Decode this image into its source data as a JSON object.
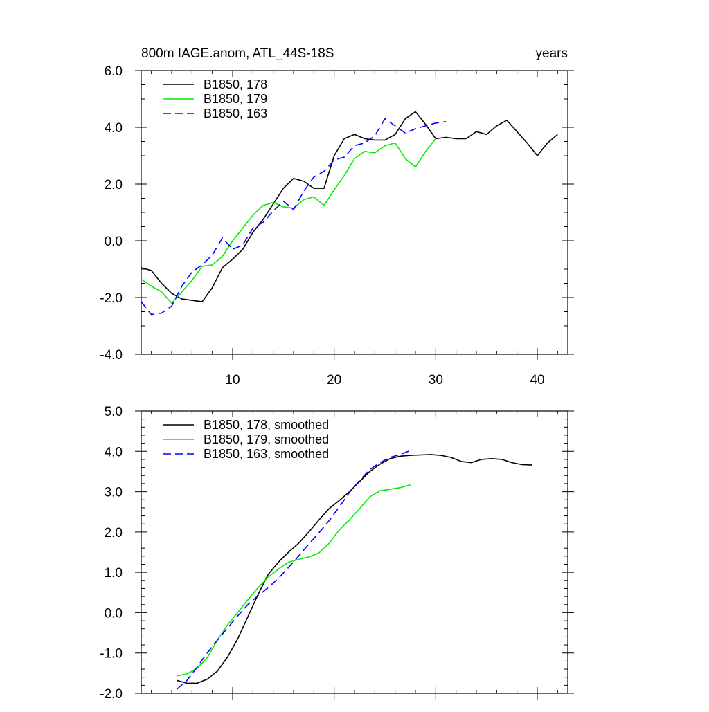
{
  "header": {
    "title_left": "800m IAGE.anom, ATL_44S-18S",
    "title_right": "years"
  },
  "colors": {
    "run_178": "#000000",
    "run_179": "#00ee00",
    "run_163": "#0000ff"
  },
  "chart_data": [
    {
      "type": "line",
      "xlim": [
        1,
        43
      ],
      "ylim": [
        -4.0,
        6.0
      ],
      "x_ticks": [
        10,
        20,
        30,
        40
      ],
      "y_ticks": [
        "-4.0",
        "-2.0",
        "0.0",
        "2.0",
        "4.0",
        "6.0"
      ],
      "legend_position": "top-left",
      "series": [
        {
          "name": "B1850, 178",
          "color": "#000000",
          "dash": "solid",
          "x": [
            1,
            2,
            3,
            4,
            5,
            6,
            7,
            8,
            9,
            10,
            11,
            12,
            13,
            14,
            15,
            16,
            17,
            18,
            19,
            20,
            21,
            22,
            23,
            24,
            25,
            26,
            27,
            28,
            29,
            30,
            31,
            32,
            33,
            34,
            35,
            36,
            37,
            38,
            39,
            40,
            41,
            42
          ],
          "y": [
            -0.95,
            -1.05,
            -1.5,
            -1.85,
            -2.05,
            -2.1,
            -2.15,
            -1.65,
            -0.95,
            -0.65,
            -0.3,
            0.3,
            0.75,
            1.3,
            1.85,
            2.2,
            2.1,
            1.85,
            1.85,
            3.0,
            3.6,
            3.75,
            3.6,
            3.55,
            3.55,
            3.75,
            4.3,
            4.55,
            4.1,
            3.6,
            3.65,
            3.6,
            3.6,
            3.85,
            3.75,
            4.05,
            4.25,
            3.85,
            3.45,
            3.0,
            3.45,
            3.75
          ]
        },
        {
          "name": "B1850, 179",
          "color": "#00ee00",
          "dash": "solid",
          "x": [
            1,
            2,
            3,
            4,
            5,
            6,
            7,
            8,
            9,
            10,
            11,
            12,
            13,
            14,
            15,
            16,
            17,
            18,
            19,
            20,
            21,
            22,
            23,
            24,
            25,
            26,
            27,
            28,
            29,
            30
          ],
          "y": [
            -1.35,
            -1.6,
            -1.8,
            -2.2,
            -1.8,
            -1.4,
            -0.9,
            -0.85,
            -0.55,
            0.0,
            0.45,
            0.9,
            1.25,
            1.35,
            1.2,
            1.15,
            1.45,
            1.55,
            1.25,
            1.8,
            2.3,
            2.9,
            3.15,
            3.1,
            3.35,
            3.45,
            2.9,
            2.6,
            3.15,
            3.6
          ]
        },
        {
          "name": "B1850, 163",
          "color": "#0000ff",
          "dash": "dashed",
          "x": [
            1,
            2,
            3,
            4,
            5,
            6,
            7,
            8,
            9,
            10,
            11,
            12,
            13,
            14,
            15,
            16,
            17,
            18,
            19,
            20,
            21,
            22,
            23,
            24,
            25,
            26,
            27,
            28,
            29,
            30,
            31
          ],
          "y": [
            -2.15,
            -2.6,
            -2.55,
            -2.3,
            -1.6,
            -1.1,
            -0.85,
            -0.5,
            0.1,
            -0.3,
            -0.15,
            0.45,
            0.65,
            1.05,
            1.4,
            1.1,
            1.75,
            2.25,
            2.45,
            2.85,
            2.95,
            3.35,
            3.45,
            3.7,
            4.3,
            4.05,
            3.8,
            3.95,
            4.05,
            4.15,
            4.2
          ]
        }
      ]
    },
    {
      "type": "line",
      "xlim": [
        1,
        43
      ],
      "ylim": [
        -2.0,
        5.0
      ],
      "y_ticks": [
        "-2.0",
        "-1.0",
        "0.0",
        "1.0",
        "2.0",
        "3.0",
        "4.0",
        "5.0"
      ],
      "legend_position": "top-left",
      "series": [
        {
          "name": "B1850, 178, smoothed",
          "color": "#000000",
          "dash": "solid",
          "x": [
            4.5,
            5.5,
            6.5,
            7.5,
            8.5,
            9.5,
            10.5,
            11.5,
            12.5,
            13.5,
            14.5,
            15.5,
            16.5,
            17.5,
            18.5,
            19.5,
            20.5,
            21.5,
            22.5,
            23.5,
            24.5,
            25.5,
            26.5,
            27.5,
            28.5,
            29.5,
            30.5,
            31.5,
            32.5,
            33.5,
            34.5,
            35.5,
            36.5,
            37.5,
            38.5,
            39.5
          ],
          "y": [
            -1.68,
            -1.75,
            -1.75,
            -1.65,
            -1.45,
            -1.1,
            -0.65,
            -0.1,
            0.45,
            0.95,
            1.25,
            1.5,
            1.72,
            2.0,
            2.3,
            2.58,
            2.78,
            3.0,
            3.25,
            3.5,
            3.68,
            3.82,
            3.88,
            3.9,
            3.91,
            3.92,
            3.9,
            3.85,
            3.75,
            3.72,
            3.8,
            3.82,
            3.8,
            3.72,
            3.67,
            3.66
          ]
        },
        {
          "name": "B1850, 179, smoothed",
          "color": "#00ee00",
          "dash": "solid",
          "x": [
            4.5,
            5.5,
            6.5,
            7.5,
            8.5,
            9.5,
            10.5,
            11.5,
            12.5,
            13.5,
            14.5,
            15.5,
            16.5,
            17.5,
            18.5,
            19.5,
            20.5,
            21.5,
            22.5,
            23.5,
            24.5,
            25.5,
            26.5,
            27.5
          ],
          "y": [
            -1.57,
            -1.52,
            -1.38,
            -1.12,
            -0.68,
            -0.3,
            0.0,
            0.32,
            0.62,
            0.88,
            1.08,
            1.25,
            1.32,
            1.38,
            1.48,
            1.72,
            2.05,
            2.3,
            2.58,
            2.87,
            3.02,
            3.06,
            3.1,
            3.17
          ]
        },
        {
          "name": "B1850, 163, smoothed",
          "color": "#0000ff",
          "dash": "dashed",
          "x": [
            4.5,
            5.5,
            6.5,
            7.5,
            8.5,
            9.5,
            10.5,
            11.5,
            12.5,
            13.5,
            14.5,
            15.5,
            16.5,
            17.5,
            18.5,
            19.5,
            20.5,
            21.5,
            22.5,
            23.5,
            24.5,
            25.5,
            26.5,
            27.5
          ],
          "y": [
            -1.9,
            -1.68,
            -1.35,
            -1.0,
            -0.68,
            -0.38,
            -0.08,
            0.2,
            0.42,
            0.62,
            0.85,
            1.12,
            1.4,
            1.7,
            1.98,
            2.28,
            2.62,
            2.98,
            3.28,
            3.55,
            3.72,
            3.85,
            3.92,
            4.02
          ]
        }
      ]
    }
  ]
}
